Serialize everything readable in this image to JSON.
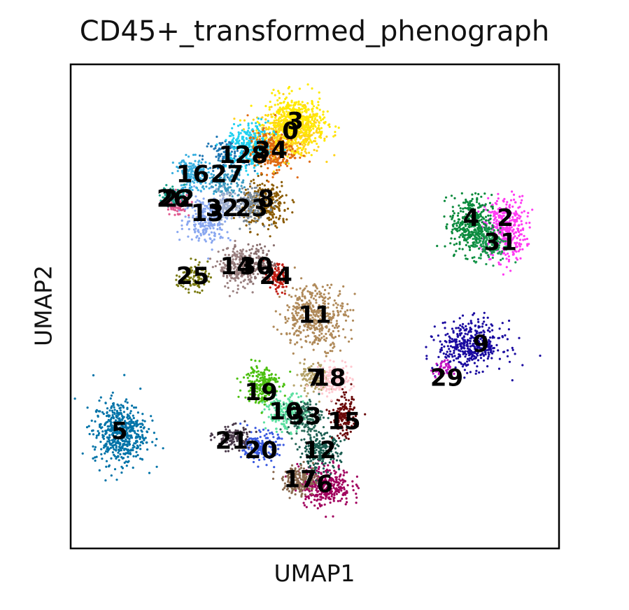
{
  "chart_data": {
    "type": "scatter",
    "title": "CD45+_transformed_phenograph",
    "xlabel": "UMAP1",
    "ylabel": "UMAP2",
    "grid": false,
    "legend": "on data",
    "xlim": [
      0,
      10
    ],
    "ylim": [
      0,
      10
    ],
    "series": [
      {
        "name": "0",
        "color": "#ffd21a",
        "center": [
          4.5,
          8.6
        ],
        "spread": [
          0.55,
          0.4
        ],
        "n": 500
      },
      {
        "name": "1",
        "color": "#1f77b4",
        "center": [
          3.2,
          8.1
        ],
        "spread": [
          0.4,
          0.3
        ],
        "n": 120
      },
      {
        "name": "2",
        "color": "#ff3af2",
        "center": [
          8.9,
          6.6
        ],
        "spread": [
          0.35,
          0.55
        ],
        "n": 380
      },
      {
        "name": "3",
        "color": "#ffea00",
        "center": [
          4.6,
          8.8
        ],
        "spread": [
          0.5,
          0.45
        ],
        "n": 420
      },
      {
        "name": "4",
        "color": "#0a8a3c",
        "center": [
          8.2,
          6.7
        ],
        "spread": [
          0.35,
          0.5
        ],
        "n": 360
      },
      {
        "name": "5",
        "color": "#0073a8",
        "center": [
          1.0,
          2.4
        ],
        "spread": [
          0.45,
          0.55
        ],
        "n": 520
      },
      {
        "name": "6",
        "color": "#a1005e",
        "center": [
          5.2,
          1.3
        ],
        "spread": [
          0.45,
          0.35
        ],
        "n": 320
      },
      {
        "name": "7",
        "color": "#b5a36a",
        "center": [
          5.0,
          3.5
        ],
        "spread": [
          0.25,
          0.25
        ],
        "n": 120
      },
      {
        "name": "8",
        "color": "#8a5a00",
        "center": [
          4.0,
          7.1
        ],
        "spread": [
          0.4,
          0.4
        ],
        "n": 260
      },
      {
        "name": "9",
        "color": "#1a0aa0",
        "center": [
          8.2,
          4.2
        ],
        "spread": [
          0.55,
          0.4
        ],
        "n": 420
      },
      {
        "name": "10",
        "color": "#5ce0a0",
        "center": [
          4.4,
          2.8
        ],
        "spread": [
          0.35,
          0.3
        ],
        "n": 200
      },
      {
        "name": "11",
        "color": "#b08a5a",
        "center": [
          5.0,
          4.8
        ],
        "spread": [
          0.55,
          0.55
        ],
        "n": 420
      },
      {
        "name": "12",
        "color": "#1a5c50",
        "center": [
          5.1,
          2.0
        ],
        "spread": [
          0.35,
          0.3
        ],
        "n": 220
      },
      {
        "name": "13",
        "color": "#8aa8f0",
        "center": [
          2.8,
          6.8
        ],
        "spread": [
          0.4,
          0.4
        ],
        "n": 220
      },
      {
        "name": "14",
        "color": "#9a8080",
        "center": [
          3.4,
          5.8
        ],
        "spread": [
          0.3,
          0.35
        ],
        "n": 200
      },
      {
        "name": "15",
        "color": "#6a0a0a",
        "center": [
          5.6,
          2.7
        ],
        "spread": [
          0.2,
          0.35
        ],
        "n": 160
      },
      {
        "name": "16",
        "color": "#3ab0e0",
        "center": [
          2.5,
          7.7
        ],
        "spread": [
          0.3,
          0.3
        ],
        "n": 180
      },
      {
        "name": "17",
        "color": "#8a6a50",
        "center": [
          4.7,
          1.4
        ],
        "spread": [
          0.3,
          0.25
        ],
        "n": 160
      },
      {
        "name": "18",
        "color": "#ffc8d0",
        "center": [
          5.4,
          3.5
        ],
        "spread": [
          0.3,
          0.25
        ],
        "n": 160
      },
      {
        "name": "19",
        "color": "#4cc010",
        "center": [
          3.9,
          3.4
        ],
        "spread": [
          0.3,
          0.35
        ],
        "n": 200
      },
      {
        "name": "20",
        "color": "#3a5ae0",
        "center": [
          3.9,
          2.1
        ],
        "spread": [
          0.3,
          0.25
        ],
        "n": 180
      },
      {
        "name": "21",
        "color": "#4a3a4a",
        "center": [
          3.3,
          2.3
        ],
        "spread": [
          0.3,
          0.2
        ],
        "n": 120
      },
      {
        "name": "22",
        "color": "#e05a90",
        "center": [
          2.2,
          7.1
        ],
        "spread": [
          0.2,
          0.2
        ],
        "n": 80
      },
      {
        "name": "23",
        "color": "#7a8a9a",
        "center": [
          3.7,
          7.1
        ],
        "spread": [
          0.3,
          0.3
        ],
        "n": 140
      },
      {
        "name": "24",
        "color": "#c01a10",
        "center": [
          4.2,
          5.6
        ],
        "spread": [
          0.2,
          0.25
        ],
        "n": 100
      },
      {
        "name": "25",
        "color": "#7a7a10",
        "center": [
          2.5,
          5.6
        ],
        "spread": [
          0.25,
          0.25
        ],
        "n": 100
      },
      {
        "name": "26",
        "color": "#1aa08a",
        "center": [
          2.1,
          7.3
        ],
        "spread": [
          0.2,
          0.15
        ],
        "n": 70
      },
      {
        "name": "27",
        "color": "#3a9ac0",
        "center": [
          3.2,
          7.6
        ],
        "spread": [
          0.3,
          0.3
        ],
        "n": 120
      },
      {
        "name": "28",
        "color": "#20d0f0",
        "center": [
          3.7,
          8.3
        ],
        "spread": [
          0.4,
          0.4
        ],
        "n": 300
      },
      {
        "name": "29",
        "color": "#c010c0",
        "center": [
          7.6,
          3.7
        ],
        "spread": [
          0.15,
          0.15
        ],
        "n": 40
      },
      {
        "name": "30",
        "color": "#8a7070",
        "center": [
          3.8,
          5.9
        ],
        "spread": [
          0.3,
          0.3
        ],
        "n": 120
      },
      {
        "name": "31",
        "color": "#1a9a50",
        "center": [
          8.6,
          6.3
        ],
        "spread": [
          0.3,
          0.3
        ],
        "n": 140
      },
      {
        "name": "32",
        "color": "#a0b0d0",
        "center": [
          3.2,
          7.1
        ],
        "spread": [
          0.25,
          0.25
        ],
        "n": 100
      },
      {
        "name": "33",
        "color": "#2a6a5a",
        "center": [
          4.8,
          2.7
        ],
        "spread": [
          0.3,
          0.3
        ],
        "n": 140
      },
      {
        "name": "34",
        "color": "#e06a10",
        "center": [
          4.1,
          8.2
        ],
        "spread": [
          0.4,
          0.35
        ],
        "n": 240
      }
    ],
    "labels": [
      {
        "text": "3",
        "x": 4.6,
        "y": 8.8
      },
      {
        "text": "0",
        "x": 4.5,
        "y": 8.6
      },
      {
        "text": "34",
        "x": 4.1,
        "y": 8.2
      },
      {
        "text": "28",
        "x": 3.7,
        "y": 8.1
      },
      {
        "text": "1",
        "x": 3.2,
        "y": 8.1
      },
      {
        "text": "16",
        "x": 2.5,
        "y": 7.7
      },
      {
        "text": "27",
        "x": 3.2,
        "y": 7.7
      },
      {
        "text": "26",
        "x": 2.1,
        "y": 7.2
      },
      {
        "text": "22",
        "x": 2.2,
        "y": 7.2
      },
      {
        "text": "32",
        "x": 3.1,
        "y": 7.0
      },
      {
        "text": "8",
        "x": 4.0,
        "y": 7.2
      },
      {
        "text": "23",
        "x": 3.7,
        "y": 7.0
      },
      {
        "text": "13",
        "x": 2.8,
        "y": 6.9
      },
      {
        "text": "14",
        "x": 3.4,
        "y": 5.8
      },
      {
        "text": "30",
        "x": 3.8,
        "y": 5.8
      },
      {
        "text": "25",
        "x": 2.5,
        "y": 5.6
      },
      {
        "text": "24",
        "x": 4.2,
        "y": 5.6
      },
      {
        "text": "11",
        "x": 5.0,
        "y": 4.8
      },
      {
        "text": "7",
        "x": 5.0,
        "y": 3.5
      },
      {
        "text": "18",
        "x": 5.3,
        "y": 3.5
      },
      {
        "text": "19",
        "x": 3.9,
        "y": 3.2
      },
      {
        "text": "10",
        "x": 4.4,
        "y": 2.8
      },
      {
        "text": "33",
        "x": 4.8,
        "y": 2.7
      },
      {
        "text": "15",
        "x": 5.6,
        "y": 2.6
      },
      {
        "text": "21",
        "x": 3.3,
        "y": 2.2
      },
      {
        "text": "20",
        "x": 3.9,
        "y": 2.0
      },
      {
        "text": "12",
        "x": 5.1,
        "y": 2.0
      },
      {
        "text": "17",
        "x": 4.7,
        "y": 1.4
      },
      {
        "text": "6",
        "x": 5.2,
        "y": 1.3
      },
      {
        "text": "5",
        "x": 1.0,
        "y": 2.4
      },
      {
        "text": "4",
        "x": 8.2,
        "y": 6.8
      },
      {
        "text": "2",
        "x": 8.9,
        "y": 6.8
      },
      {
        "text": "31",
        "x": 8.8,
        "y": 6.3
      },
      {
        "text": "9",
        "x": 8.4,
        "y": 4.2
      },
      {
        "text": "29",
        "x": 7.7,
        "y": 3.5
      }
    ]
  }
}
